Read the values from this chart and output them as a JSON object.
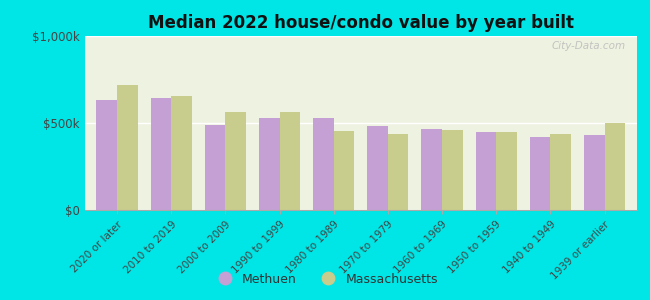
{
  "title": "Median 2022 house/condo value by year built",
  "categories": [
    "2020 or later",
    "2010 to 2019",
    "2000 to 2009",
    "1990 to 1999",
    "1980 to 1989",
    "1970 to 1979",
    "1960 to 1969",
    "1950 to 1959",
    "1940 to 1949",
    "1939 or earlier"
  ],
  "methuen": [
    635000,
    645000,
    490000,
    530000,
    530000,
    485000,
    465000,
    450000,
    420000,
    430000
  ],
  "massachusetts": [
    720000,
    655000,
    565000,
    565000,
    455000,
    435000,
    460000,
    450000,
    435000,
    500000
  ],
  "methuen_color": "#c4a0d4",
  "massachusetts_color": "#c8cc8c",
  "background_color": "#00e5e5",
  "plot_bg_color": "#eef2e0",
  "ylim": [
    0,
    1000000
  ],
  "ytick_labels": [
    "$0",
    "$500k",
    "$1,000k"
  ],
  "bar_width": 0.38,
  "legend_methuen": "Methuen",
  "legend_massachusetts": "Massachusetts",
  "watermark": "City-Data.com"
}
